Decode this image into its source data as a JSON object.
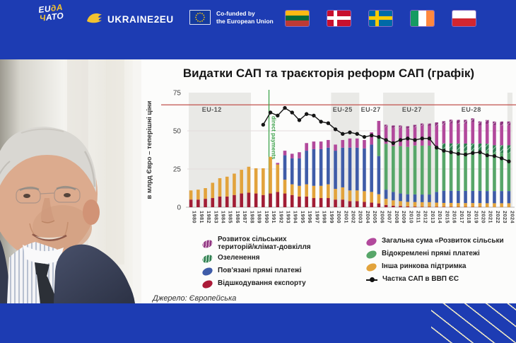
{
  "banner": {
    "eu_nato": {
      "line1_white": "EU",
      "line1_yellow": "дА",
      "line2_yellow": "Ч",
      "line2_white": "АТО"
    },
    "ukraine2eu_label": "UKRAINE2EU",
    "cofunded_line1": "Co-funded by",
    "cofunded_line2": "the European Union",
    "flags": [
      {
        "id": "lithuania"
      },
      {
        "id": "denmark"
      },
      {
        "id": "sweden"
      },
      {
        "id": "ireland"
      },
      {
        "id": "poland"
      }
    ]
  },
  "slide": {
    "title": "Видатки САП та траєкторія реформ САП (графік)",
    "source": "Джерело: Європейська",
    "legend_left": [
      {
        "label": "Розвиток сільських\nтериторій/клімат-довкілля",
        "swatch": "magenta-hatched"
      },
      {
        "label": "Озеленення",
        "swatch": "green-hatched"
      },
      {
        "label": "Пов'язані прямі платежі",
        "swatch": "blue"
      },
      {
        "label": "Відшкодування експорту",
        "swatch": "darkred"
      }
    ],
    "legend_right": [
      {
        "label": "Загальна сума «Розвиток сільськи",
        "swatch": "magenta"
      },
      {
        "label": "Відокремлені прямі платежі",
        "swatch": "green"
      },
      {
        "label": "Інша ринкова підтримка",
        "swatch": "orange"
      },
      {
        "label": "Частка САП в ВВП ЄС",
        "swatch": "line-dot"
      }
    ]
  },
  "chart_data": {
    "type": "stacked-bar+line",
    "title": "Видатки САП та траєкторія реформ САП (графік)",
    "ylabel": "в млрд Євро – теперішні ціни",
    "ylim": [
      0,
      75
    ],
    "yticks": [
      0,
      25,
      50,
      75
    ],
    "years": [
      1980,
      1981,
      1982,
      1983,
      1984,
      1985,
      1986,
      1987,
      1988,
      1989,
      1990,
      1991,
      1992,
      1993,
      1994,
      1995,
      1996,
      1997,
      1998,
      1999,
      2000,
      2001,
      2002,
      2003,
      2004,
      2005,
      2006,
      2007,
      2008,
      2009,
      2010,
      2011,
      2012,
      2013,
      2014,
      2015,
      2016,
      2017,
      2018,
      2019,
      2020,
      2021,
      2022,
      2023,
      2024
    ],
    "series": [
      {
        "name": "Відшкодування експорту",
        "color": "#a11d35",
        "hatched": false,
        "values": [
          5,
          5,
          5.5,
          6,
          7,
          7,
          8,
          9,
          9.5,
          9,
          8,
          9,
          10,
          9,
          8,
          7,
          7,
          6,
          6,
          6,
          5,
          5,
          4,
          4,
          3.5,
          3,
          2.5,
          1.5,
          1,
          0.8,
          0.5,
          0.4,
          0.3,
          0.3,
          0.3,
          0.3,
          0.3,
          0.2,
          0.2,
          0.2,
          0.2,
          0.1,
          0.1,
          0.1,
          0.1
        ]
      },
      {
        "name": "Інша ринкова підтримка",
        "color": "#e2a33c",
        "hatched": false,
        "values": [
          6,
          6.5,
          7,
          10,
          12,
          13,
          14,
          15.5,
          17,
          16.5,
          17.5,
          24,
          18,
          9,
          7,
          7,
          8,
          8,
          8,
          9,
          7,
          8,
          7,
          7,
          7,
          7,
          6,
          4,
          3.5,
          3.2,
          3,
          3,
          3,
          3,
          2.7,
          2.5,
          2.5,
          2.5,
          2.5,
          2.5,
          2.5,
          2.5,
          2.5,
          2.5,
          2.5
        ]
      },
      {
        "name": "Пов'язані прямі платежі",
        "color": "#3f5ca8",
        "hatched": false,
        "values": [
          0,
          0,
          0,
          0,
          0,
          0,
          0,
          0,
          0,
          0,
          0,
          0,
          0,
          16,
          17,
          18,
          22,
          24,
          24,
          24,
          25,
          26,
          28,
          28,
          28,
          31,
          25,
          6,
          5.5,
          5,
          5,
          5,
          5,
          5,
          7,
          8,
          8,
          8,
          8,
          8,
          8,
          8,
          8,
          8,
          8
        ]
      },
      {
        "name": "Відокремлені прямі платежі",
        "color": "#57a669",
        "hatched": false,
        "values": [
          0,
          0,
          0,
          0,
          0,
          0,
          0,
          0,
          0,
          0,
          0,
          0,
          0,
          0,
          0,
          0,
          0,
          0,
          0,
          0,
          0,
          0,
          0,
          0,
          0,
          0,
          13,
          30,
          30,
          31,
          31,
          32,
          32,
          32,
          30,
          26,
          26,
          26,
          26,
          26,
          26,
          26,
          25,
          25,
          25
        ]
      },
      {
        "name": "Озеленення",
        "color": "#2e7d4f",
        "hatched": true,
        "values": [
          0,
          0,
          0,
          0,
          0,
          0,
          0,
          0,
          0,
          0,
          0,
          0,
          0,
          0,
          0,
          0,
          0,
          0,
          0,
          0,
          0,
          0,
          0,
          0,
          0,
          0,
          0,
          0,
          0,
          0,
          0,
          0,
          0,
          0,
          0,
          5,
          5,
          5,
          5,
          5,
          5,
          5,
          5,
          5,
          5
        ]
      },
      {
        "name": "Загальна сума «Розвиток сільськи",
        "color": "#b2499c",
        "hatched": false,
        "values": [
          0,
          0,
          0,
          0,
          0,
          0,
          0,
          0,
          0,
          0,
          0,
          0,
          1,
          3,
          3,
          4,
          5,
          5,
          5,
          5,
          4,
          5,
          6,
          6,
          5.5,
          8,
          10,
          11,
          12,
          12,
          12,
          12,
          13,
          13,
          13,
          12,
          13,
          13,
          13,
          14,
          12,
          13,
          13,
          13,
          13
        ]
      },
      {
        "name": "Розвиток сільських територій/клімат-довкілля",
        "color": "#8e3580",
        "hatched": true,
        "values": [
          0,
          0,
          0,
          0,
          0,
          0,
          0,
          0,
          0,
          0,
          0,
          0,
          0,
          0,
          0,
          0,
          0,
          0,
          0,
          0,
          0,
          0,
          0,
          0,
          0,
          0,
          0,
          1.5,
          1.5,
          1.5,
          1.5,
          1.5,
          1.5,
          1.5,
          2.5,
          2.5,
          2.5,
          2.5,
          2.5,
          2.5,
          2.5,
          2.5,
          2.5,
          2.5,
          2.5
        ]
      }
    ],
    "line_series": {
      "name": "Частка САП в ВВП ЄС",
      "color": "#151515",
      "values": [
        null,
        null,
        null,
        null,
        null,
        null,
        null,
        null,
        null,
        null,
        54,
        62,
        60,
        65,
        62,
        57,
        61,
        60,
        56,
        55,
        51,
        48,
        49,
        48,
        46,
        47,
        46,
        44,
        42,
        44,
        45,
        44,
        45,
        45,
        39,
        37,
        36,
        35,
        34.5,
        35.5,
        36,
        34,
        33.5,
        32,
        30
      ]
    },
    "reference_line": {
      "value": 67,
      "color": "#c0504d"
    },
    "event_line": {
      "year": 1991.3,
      "label": "direct payments",
      "color": "#3fa34d"
    },
    "era_bands": [
      {
        "from": 1980.2,
        "to": 1988.8
      },
      {
        "from": 1999.9,
        "to": 2003.8
      },
      {
        "from": 2007.1,
        "to": 2014.2
      },
      {
        "from": 2024.3,
        "to": 2025.0
      }
    ],
    "era_labels": [
      {
        "text": "EU-12",
        "year": 1983.4
      },
      {
        "text": "EU-25",
        "year": 2001.5
      },
      {
        "text": "EU-27",
        "year": 2005.4
      },
      {
        "text": "EU-27",
        "year": 2011.1
      },
      {
        "text": "EU-28",
        "year": 2019.3
      }
    ],
    "legend_position": "bottom",
    "grid": "horizontal-light"
  }
}
